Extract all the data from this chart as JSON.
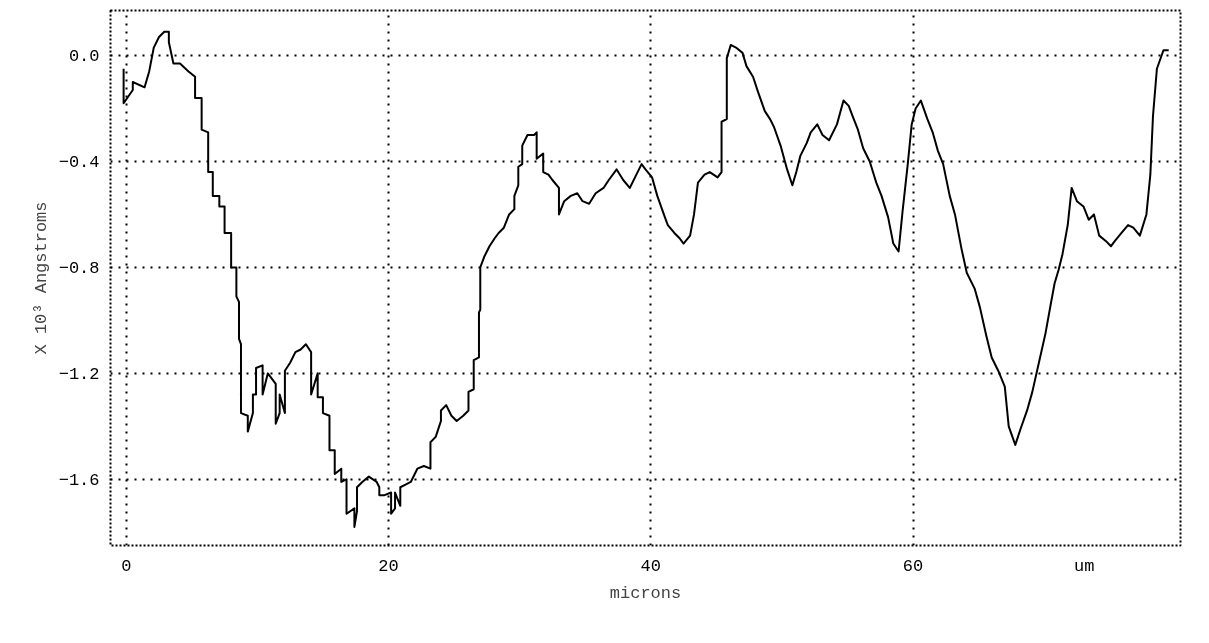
{
  "chart_data": {
    "type": "line",
    "xlabel": "microns",
    "ylabel": "X 10³ Angstroms",
    "annotations": [
      "um"
    ],
    "xlim": [
      -1.2,
      80.4
    ],
    "ylim": [
      -1.85,
      0.17
    ],
    "xticks": [
      0,
      20,
      40,
      60
    ],
    "yticks": [
      {
        "value": 0,
        "label": "0.0"
      },
      -0.4,
      -0.8,
      -1.2,
      -1.6
    ],
    "grid": true,
    "marker": "none",
    "line_style": "solid",
    "series": [
      {
        "color": "#000000",
        "x": [
          -0.2,
          -0.2,
          0.5,
          0.5,
          1.4,
          1.75,
          2.1,
          2.5,
          2.9,
          3.25,
          3.25,
          3.6,
          4.1,
          4.75,
          5.25,
          5.25,
          5.75,
          5.75,
          6.25,
          6.25,
          6.6,
          6.6,
          7.1,
          7.1,
          7.5,
          7.5,
          8.0,
          8.0,
          8.4,
          8.4,
          8.6,
          8.6,
          8.75,
          8.75,
          9.27,
          9.27,
          9.66,
          9.66,
          9.9,
          9.9,
          10.4,
          10.4,
          10.8,
          11.4,
          11.4,
          11.7,
          11.7,
          12.1,
          12.1,
          12.5,
          12.9,
          13.3,
          13.7,
          14.1,
          14.1,
          14.6,
          14.6,
          15.0,
          15.0,
          15.5,
          15.5,
          15.9,
          15.9,
          16.4,
          16.4,
          16.8,
          16.8,
          17.4,
          17.4,
          17.6,
          17.6,
          18.0,
          18.5,
          19.1,
          19.3,
          19.3,
          19.7,
          20.2,
          20.2,
          20.5,
          20.5,
          20.9,
          20.9,
          21.3,
          21.7,
          22.2,
          22.7,
          23.2,
          23.2,
          23.6,
          24.0,
          24.0,
          24.4,
          24.8,
          25.2,
          25.7,
          26.1,
          26.1,
          26.5,
          26.5,
          26.9,
          26.9,
          27.0,
          27.0,
          27.3,
          27.7,
          28.1,
          28.4,
          28.8,
          29.2,
          29.6,
          29.6,
          29.9,
          29.9,
          30.2,
          30.2,
          30.6,
          31.1,
          31.3,
          31.3,
          31.8,
          31.8,
          32.2,
          32.5,
          33.0,
          33.0,
          33.4,
          33.9,
          34.4,
          34.8,
          35.3,
          35.8,
          36.4,
          36.8,
          37.4,
          37.9,
          38.4,
          38.8,
          39.3,
          39.6,
          40.1,
          40.5,
          41.0,
          41.3,
          41.8,
          42.2,
          42.5,
          43.0,
          43.3,
          43.6,
          44.1,
          44.5,
          45.1,
          45.4,
          45.4,
          45.8,
          45.8,
          46.1,
          46.5,
          47.0,
          47.3,
          47.8,
          48.2,
          48.7,
          49.1,
          49.4,
          49.9,
          50.4,
          50.8,
          51.1,
          51.4,
          51.9,
          52.2,
          52.7,
          53.1,
          53.6,
          54.2,
          54.7,
          55.1,
          55.4,
          55.8,
          56.2,
          56.7,
          57.2,
          57.6,
          58.1,
          58.5,
          58.9,
          59.2,
          59.6,
          59.9,
          60.2,
          60.6,
          61.1,
          61.5,
          61.9,
          62.3,
          62.8,
          63.2,
          63.7,
          64.1,
          64.7,
          65.1,
          65.6,
          66.0,
          66.5,
          67.0,
          67.3,
          67.8,
          68.2,
          68.7,
          69.1,
          69.6,
          70.1,
          70.5,
          70.8,
          71.1,
          71.4,
          71.8,
          72.1,
          72.5,
          73.0,
          73.4,
          73.8,
          74.2,
          74.7,
          75.1,
          75.4,
          75.9,
          76.4,
          76.8,
          77.3,
          77.8,
          78.1,
          78.3,
          78.6,
          79.1,
          79.5
        ],
        "values": [
          -0.05,
          -0.18,
          -0.13,
          -0.1,
          -0.12,
          -0.06,
          0.03,
          0.07,
          0.09,
          0.09,
          0.05,
          -0.03,
          -0.03,
          -0.06,
          -0.08,
          -0.16,
          -0.16,
          -0.28,
          -0.29,
          -0.44,
          -0.44,
          -0.53,
          -0.53,
          -0.57,
          -0.57,
          -0.67,
          -0.67,
          -0.8,
          -0.8,
          -0.91,
          -0.93,
          -1.07,
          -1.09,
          -1.35,
          -1.36,
          -1.42,
          -1.35,
          -1.28,
          -1.28,
          -1.18,
          -1.17,
          -1.28,
          -1.2,
          -1.24,
          -1.39,
          -1.35,
          -1.28,
          -1.35,
          -1.19,
          -1.16,
          -1.12,
          -1.11,
          -1.09,
          -1.12,
          -1.28,
          -1.2,
          -1.29,
          -1.29,
          -1.35,
          -1.36,
          -1.49,
          -1.49,
          -1.58,
          -1.56,
          -1.61,
          -1.6,
          -1.73,
          -1.71,
          -1.78,
          -1.72,
          -1.63,
          -1.61,
          -1.59,
          -1.61,
          -1.63,
          -1.66,
          -1.66,
          -1.65,
          -1.73,
          -1.71,
          -1.65,
          -1.7,
          -1.63,
          -1.62,
          -1.61,
          -1.56,
          -1.55,
          -1.56,
          -1.46,
          -1.44,
          -1.38,
          -1.34,
          -1.32,
          -1.36,
          -1.38,
          -1.36,
          -1.34,
          -1.27,
          -1.26,
          -1.15,
          -1.14,
          -0.97,
          -0.96,
          -0.8,
          -0.76,
          -0.72,
          -0.69,
          -0.67,
          -0.65,
          -0.6,
          -0.58,
          -0.53,
          -0.49,
          -0.42,
          -0.41,
          -0.34,
          -0.3,
          -0.3,
          -0.29,
          -0.39,
          -0.37,
          -0.44,
          -0.45,
          -0.47,
          -0.5,
          -0.6,
          -0.55,
          -0.53,
          -0.52,
          -0.55,
          -0.56,
          -0.52,
          -0.5,
          -0.47,
          -0.43,
          -0.47,
          -0.5,
          -0.46,
          -0.41,
          -0.43,
          -0.46,
          -0.53,
          -0.6,
          -0.64,
          -0.67,
          -0.69,
          -0.71,
          -0.68,
          -0.6,
          -0.48,
          -0.45,
          -0.44,
          -0.46,
          -0.44,
          -0.25,
          -0.24,
          -0.01,
          0.04,
          0.03,
          0.01,
          -0.04,
          -0.08,
          -0.14,
          -0.21,
          -0.24,
          -0.27,
          -0.34,
          -0.43,
          -0.49,
          -0.44,
          -0.38,
          -0.33,
          -0.29,
          -0.26,
          -0.3,
          -0.32,
          -0.26,
          -0.17,
          -0.19,
          -0.23,
          -0.28,
          -0.35,
          -0.4,
          -0.48,
          -0.53,
          -0.61,
          -0.71,
          -0.74,
          -0.59,
          -0.41,
          -0.26,
          -0.2,
          -0.17,
          -0.24,
          -0.29,
          -0.36,
          -0.41,
          -0.53,
          -0.6,
          -0.73,
          -0.82,
          -0.88,
          -0.95,
          -1.06,
          -1.14,
          -1.19,
          -1.25,
          -1.4,
          -1.47,
          -1.41,
          -1.34,
          -1.27,
          -1.16,
          -1.05,
          -0.94,
          -0.86,
          -0.81,
          -0.75,
          -0.64,
          -0.5,
          -0.55,
          -0.57,
          -0.62,
          -0.6,
          -0.68,
          -0.7,
          -0.72,
          -0.7,
          -0.67,
          -0.64,
          -0.65,
          -0.68,
          -0.6,
          -0.45,
          -0.23,
          -0.05,
          0.02,
          0.02
        ]
      }
    ]
  }
}
